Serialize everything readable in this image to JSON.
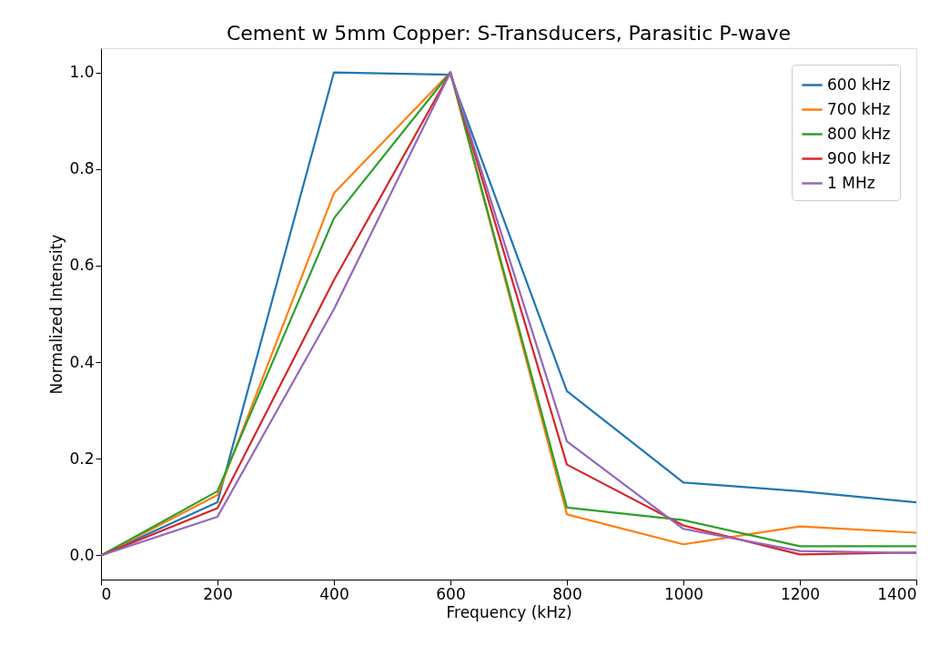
{
  "chart_data": {
    "type": "line",
    "title": "Cement w 5mm Copper: S-Transducers, Parasitic P-wave",
    "xlabel": "Frequency (kHz)",
    "ylabel": "Normalized Intensity",
    "x": [
      0,
      200,
      400,
      600,
      800,
      1000,
      1200,
      1400
    ],
    "series": [
      {
        "name": "600 kHz",
        "color": "#1f77b4",
        "values": [
          0,
          0.11,
          1.0,
          0.995,
          0.34,
          0.151,
          0.133,
          0.11
        ]
      },
      {
        "name": "700 kHz",
        "color": "#ff7f0e",
        "values": [
          0,
          0.125,
          0.75,
          1.0,
          0.085,
          0.023,
          0.06,
          0.047
        ]
      },
      {
        "name": "800 kHz",
        "color": "#2ca02c",
        "values": [
          0,
          0.133,
          0.698,
          1.0,
          0.099,
          0.073,
          0.019,
          0.019
        ]
      },
      {
        "name": "900 kHz",
        "color": "#d62728",
        "values": [
          0,
          0.098,
          0.57,
          1.0,
          0.188,
          0.062,
          0.002,
          0.006
        ]
      },
      {
        "name": "1 MHz",
        "color": "#9467bd",
        "values": [
          0,
          0.08,
          0.51,
          1.0,
          0.236,
          0.055,
          0.009,
          0.005
        ]
      }
    ],
    "xlim": [
      0,
      1400
    ],
    "xticks": [
      0,
      200,
      400,
      600,
      800,
      1000,
      1200,
      1400
    ],
    "ylim": [
      -0.05,
      1.05
    ],
    "yticks": [
      {
        "value": 0,
        "label": "0.0"
      },
      0.2,
      0.4,
      0.6,
      0.8,
      {
        "value": 1,
        "label": "1.0"
      }
    ],
    "grid": false,
    "legend": "top right",
    "marker": "none",
    "line_style": "solid"
  }
}
